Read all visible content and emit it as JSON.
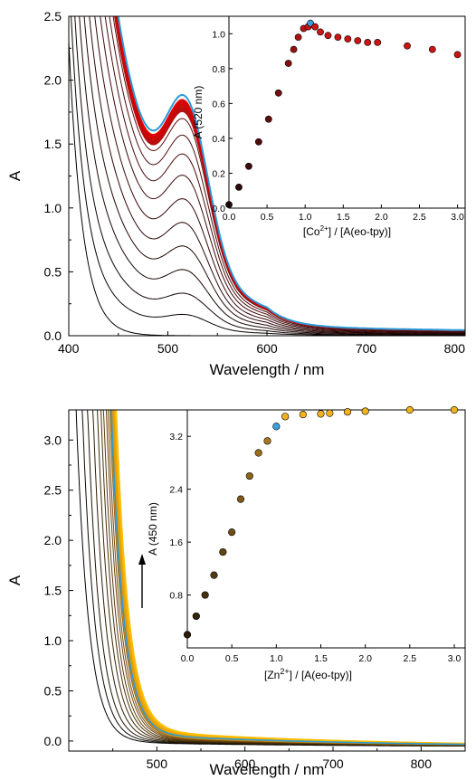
{
  "chart_data": [
    {
      "id": "top",
      "type": "line",
      "xlabel": "Wavelength / nm",
      "ylabel": "A",
      "xlim": [
        400,
        800
      ],
      "ylim": [
        0,
        2.5
      ],
      "xticks": [
        "400",
        "500",
        "600",
        "700",
        "800"
      ],
      "yticks": [
        "0.0",
        "0.5",
        "1.0",
        "1.5",
        "2.0",
        "2.5"
      ],
      "series_description": "titration spectra, black → red with increasing Co2+, blue = 1 equiv",
      "inset": {
        "type": "scatter",
        "xlabel": "[Co2+] / [A(eo-tpy)]",
        "xlabel_parts": [
          "[Co",
          "2+",
          "] / [A(eo-tpy)]"
        ],
        "ylabel": "A (520 nm)",
        "xlim": [
          0,
          3.1
        ],
        "ylim": [
          0,
          1.1
        ],
        "xticks": [
          "0.0",
          "0.5",
          "1.0",
          "1.5",
          "2.0",
          "2.5",
          "3.0"
        ],
        "yticks": [
          "0.0",
          "0.2",
          "0.4",
          "0.6",
          "0.8",
          "1.0"
        ],
        "x": [
          0.0,
          0.13,
          0.26,
          0.39,
          0.52,
          0.65,
          0.78,
          0.85,
          0.91,
          0.98,
          1.04,
          1.07,
          1.13,
          1.2,
          1.3,
          1.43,
          1.56,
          1.69,
          1.82,
          1.95,
          2.34,
          2.67,
          3.0
        ],
        "y": [
          0.02,
          0.12,
          0.24,
          0.38,
          0.51,
          0.66,
          0.83,
          0.91,
          0.98,
          1.03,
          1.04,
          1.06,
          1.04,
          1.01,
          0.99,
          0.98,
          0.97,
          0.96,
          0.95,
          0.95,
          0.93,
          0.91,
          0.88
        ],
        "highlight_index": 11
      }
    },
    {
      "id": "bottom",
      "type": "line",
      "xlabel": "Wavelength / nm",
      "ylabel": "A",
      "xlim": [
        400,
        850
      ],
      "ylim": [
        -0.1,
        3.3
      ],
      "xticks": [
        "500",
        "600",
        "700",
        "800"
      ],
      "yticks": [
        "0.0",
        "0.5",
        "1.0",
        "1.5",
        "2.0",
        "2.5",
        "3.0"
      ],
      "series_description": "titration spectra, black → orange with increasing Zn2+, blue = 1 equiv",
      "arrow": "up",
      "inset": {
        "type": "scatter",
        "xlabel": "[Zn2+] / [A(eo-tpy)]",
        "xlabel_parts": [
          "[Zn",
          "2+",
          "] / [A(eo-tpy)]"
        ],
        "ylabel": "A (450 nm)",
        "xlim": [
          0,
          3.0
        ],
        "ylim": [
          0,
          3.6
        ],
        "xticks": [
          "0.0",
          "0.5",
          "1.0",
          "1.5",
          "2.0",
          "2.5",
          "3.0"
        ],
        "yticks": [
          "0.0",
          "0.8",
          "1.6",
          "2.4",
          "3.2"
        ],
        "x": [
          0.0,
          0.1,
          0.2,
          0.3,
          0.4,
          0.5,
          0.6,
          0.7,
          0.8,
          0.9,
          1.0,
          1.1,
          1.3,
          1.5,
          1.6,
          1.8,
          2.0,
          2.5,
          3.0
        ],
        "y": [
          0.2,
          0.48,
          0.8,
          1.1,
          1.45,
          1.75,
          2.25,
          2.6,
          2.95,
          3.13,
          3.35,
          3.5,
          3.53,
          3.54,
          3.55,
          3.57,
          3.58,
          3.6,
          3.6
        ],
        "highlight_index": 10
      }
    }
  ]
}
